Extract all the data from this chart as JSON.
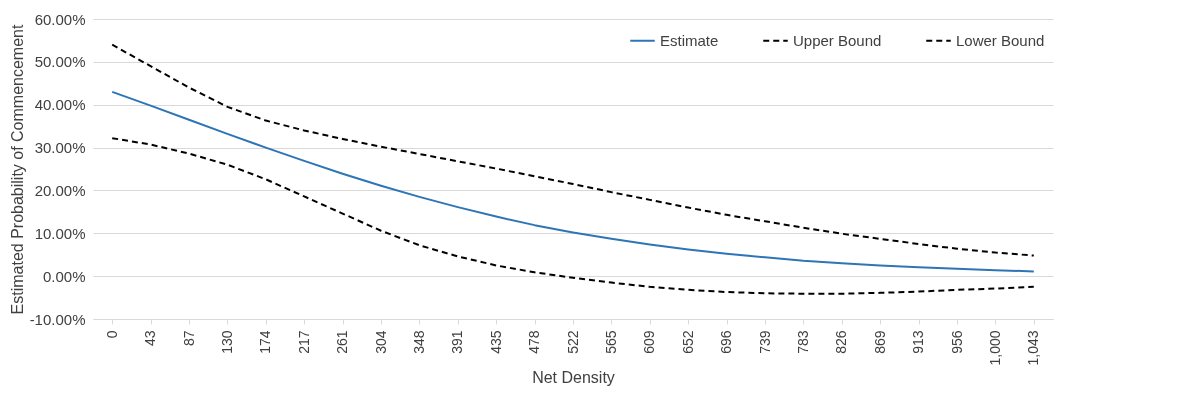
{
  "chart_data": {
    "type": "line",
    "xlabel": "Net Density",
    "ylabel": "Estimated Probability of Commencement",
    "categories": [
      "0",
      "43",
      "87",
      "130",
      "174",
      "217",
      "261",
      "304",
      "348",
      "391",
      "435",
      "478",
      "522",
      "565",
      "609",
      "652",
      "696",
      "739",
      "783",
      "826",
      "869",
      "913",
      "956",
      "1,000",
      "1,043"
    ],
    "series": [
      {
        "name": "Estimate",
        "color": "#2e75b6",
        "line_style": "solid",
        "values": [
          43,
          39.8,
          36.5,
          33.2,
          30,
          26.9,
          23.9,
          21.1,
          18.5,
          16.1,
          13.9,
          11.9,
          10.2,
          8.7,
          7.4,
          6.2,
          5.2,
          4.4,
          3.6,
          3,
          2.5,
          2.1,
          1.7,
          1.4,
          1.1
        ]
      },
      {
        "name": "Upper Bound",
        "color": "#000000",
        "line_style": "dashed",
        "values": [
          54,
          49,
          44,
          39.5,
          36.3,
          34,
          32,
          30.2,
          28.5,
          26.8,
          25.1,
          23.3,
          21.5,
          19.6,
          17.8,
          16,
          14.3,
          12.8,
          11.3,
          9.9,
          8.7,
          7.5,
          6.4,
          5.5,
          4.8
        ]
      },
      {
        "name": "Lower Bound",
        "color": "#000000",
        "line_style": "dashed",
        "values": [
          32.2,
          30.7,
          28.6,
          26,
          22.6,
          18.6,
          14.6,
          10.6,
          7.2,
          4.6,
          2.5,
          0.9,
          -0.4,
          -1.5,
          -2.5,
          -3.2,
          -3.7,
          -4,
          -4.1,
          -4.1,
          -3.9,
          -3.6,
          -3.2,
          -2.9,
          -2.5
        ]
      }
    ],
    "ylim": [
      -10,
      60
    ],
    "yticks": [
      {
        "value": -10,
        "label": "-10.00%"
      },
      {
        "value": 0,
        "label": "0.00%"
      },
      {
        "value": 10,
        "label": "10.00%"
      },
      {
        "value": 20,
        "label": "20.00%"
      },
      {
        "value": 30,
        "label": "30.00%"
      },
      {
        "value": 40,
        "label": "40.00%"
      },
      {
        "value": 50,
        "label": "50.00%"
      },
      {
        "value": 60,
        "label": "60.00%"
      }
    ],
    "grid": "y",
    "legend": "top right",
    "marker": "none"
  }
}
